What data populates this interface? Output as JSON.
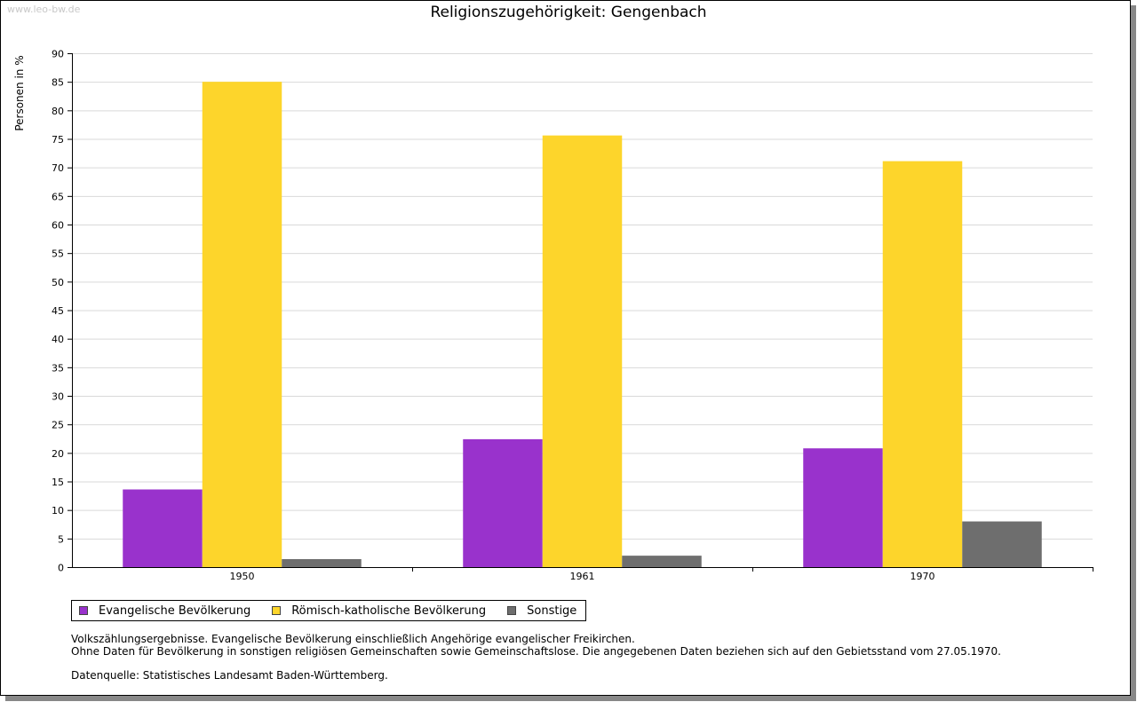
{
  "watermark": "www.leo-bw.de",
  "chart_data": {
    "type": "bar",
    "title": "Religionszugehörigkeit: Gengenbach",
    "xlabel": "",
    "ylabel": "Personen in %",
    "ylim": [
      0,
      90
    ],
    "yticks": [
      0,
      5,
      10,
      15,
      20,
      25,
      30,
      35,
      40,
      45,
      50,
      55,
      60,
      65,
      70,
      75,
      80,
      85,
      90
    ],
    "grid": true,
    "categories": [
      "1950",
      "1961",
      "1970"
    ],
    "series": [
      {
        "name": "Evangelische Bevölkerung",
        "color": "#9932cc",
        "values": [
          13.6,
          22.4,
          20.8
        ]
      },
      {
        "name": "Römisch-katholische Bevölkerung",
        "color": "#fdd52b",
        "values": [
          85.0,
          75.6,
          71.1
        ]
      },
      {
        "name": "Sonstige",
        "color": "#6e6e6e",
        "values": [
          1.4,
          2.0,
          8.0
        ]
      }
    ],
    "legend_position": "bottom-left"
  },
  "notes": {
    "line1": "Volkszählungsergebnisse. Evangelische Bevölkerung einschließlich Angehörige evangelischer Freikirchen.",
    "line2": "Ohne Daten für Bevölkerung in sonstigen religiösen Gemeinschaften sowie Gemeinschaftslose. Die angegebenen Daten beziehen sich auf den Gebietsstand vom 27.05.1970.",
    "source": "Datenquelle: Statistisches Landesamt Baden-Württemberg."
  }
}
